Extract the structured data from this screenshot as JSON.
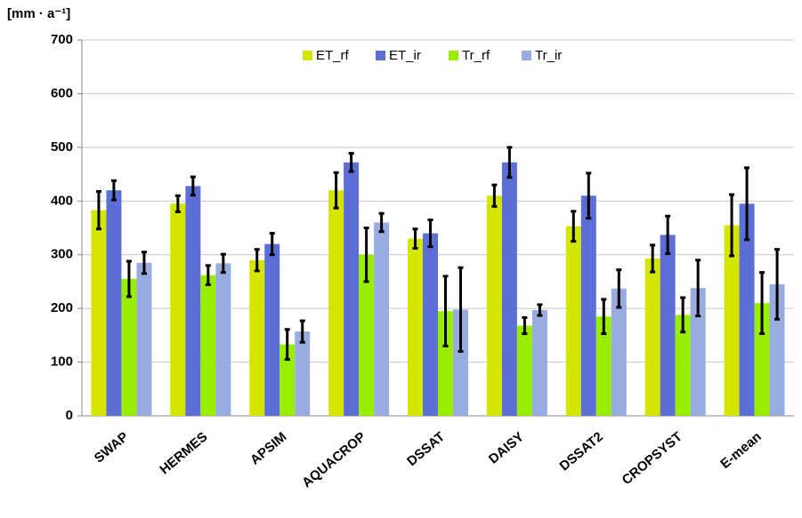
{
  "chart_data": {
    "type": "bar",
    "y_label": "[mm · a⁻¹]",
    "categories": [
      "SWAP",
      "HERMES",
      "APSIM",
      "AQUACROP",
      "DSSAT",
      "DAISY",
      "DSSAT2",
      "CROPSYST",
      "E-mean"
    ],
    "series": [
      {
        "name": "ET_rf",
        "color": "#d4e600",
        "values": [
          383,
          395,
          290,
          420,
          330,
          410,
          353,
          293,
          355
        ],
        "errors": [
          35,
          15,
          20,
          33,
          18,
          20,
          28,
          25,
          57
        ]
      },
      {
        "name": "ET_ir",
        "color": "#5b6fd6",
        "values": [
          420,
          428,
          320,
          472,
          340,
          472,
          410,
          337,
          395
        ],
        "errors": [
          18,
          17,
          20,
          17,
          25,
          28,
          42,
          35,
          67
        ]
      },
      {
        "name": "Tr_rf",
        "color": "#99ee00",
        "values": [
          255,
          262,
          133,
          300,
          195,
          168,
          185,
          188,
          210
        ],
        "errors": [
          33,
          18,
          28,
          50,
          65,
          15,
          32,
          32,
          57
        ]
      },
      {
        "name": "Tr_ir",
        "color": "#98acdf",
        "values": [
          285,
          284,
          157,
          360,
          198,
          197,
          237,
          238,
          245
        ],
        "errors": [
          20,
          17,
          20,
          17,
          78,
          10,
          35,
          52,
          65
        ]
      }
    ],
    "ylim": [
      0,
      700
    ],
    "yticks": [
      0,
      100,
      200,
      300,
      400,
      500,
      600,
      700
    ],
    "grid": true,
    "legend": "top"
  }
}
